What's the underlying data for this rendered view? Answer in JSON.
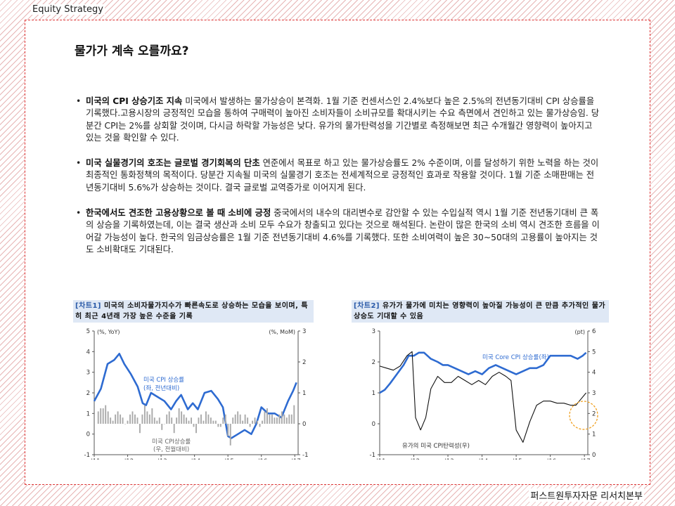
{
  "header": {
    "label": "Equity Strategy"
  },
  "title": "물가가 계속 오를까요?",
  "bullets": [
    {
      "bold": "미국의 CPI 상승기조 지속",
      "text": " 미국에서 발생하는 물가상승이 본격화. 1월 기준 컨센서스인 2.4%보다 높은 2.5%의 전년동기대비 CPI 상승률을 기록했다.고용시장의 긍정적인 모습을 통하여 구매력이 높아진 소비자들이 소비규모를 확대시키는 수요 측면에서 견인하고 있는 물가상승임. 당분간 CPI는 2%를 상회할 것이며, 다시금 하락할 가능성은 낮다. 유가의 물가탄력성을 기간별로 측정해보면 최근 수개월간 영향력이 높아지고 있는 것을 확인할 수 있다."
    },
    {
      "bold": "미국 실물경기의 호조는 글로벌 경기회복의 단초",
      "text": " 연준에서 목표로 하고 있는 물가상승률도 2% 수준이며, 이를 달성하기 위한 노력을 하는 것이 최종적인 통화정책의 목적이다. 당분간 지속될 미국의 실물경기 호조는 전세계적으로 긍정적인 효과로 작용할 것이다. 1월 기준 소매판매는 전년동기대비 5.6%가 상승하는 것이다. 결국 글로벌 교역증가로 이어지게 된다."
    },
    {
      "bold": "한국에서도 견조한 고용상황으로 볼 때 소비에 긍정",
      "text": " 중국에서의 내수의 대리변수로 감안할 수 있는 수입실적 역시 1월 기준 전년동기대비 큰 폭의 상승을 기록하였는데, 이는 결국 생산과 소비 모두 수요가 창출되고 있다는 것으로 해석된다. 논란이 많은 한국의 소비 역시 견조한 흐름을 이어갈 가능성이 높다. 한국의 임금상승률은 1월 기준 전년동기대비 4.6%를 기록했다. 또한 소비여력이 높은 30~50대의 고용률이 높아지는 것도 소비확대도 기대된다."
    }
  ],
  "chart_data": [
    {
      "type": "line",
      "tag": "[차트1]",
      "title": "미국의 소비자물가지수가 빠른속도로 상승하는 모습을 보이며, 특히 최근 4년래 가장 높은 수준을 기록",
      "left_axis_unit": "(%, YoY)",
      "right_axis_unit": "(%, MoM)",
      "x_ticks": [
        "'11",
        "'12",
        "'13",
        "'14",
        "'15",
        "'16",
        "'17"
      ],
      "left_ticks": [
        "5",
        "4",
        "3",
        "2",
        "1",
        "0",
        "-1"
      ],
      "right_ticks": [
        "3",
        "2",
        "1",
        "0",
        "-1"
      ],
      "ylim_left": [
        -1,
        5
      ],
      "ylim_right": [
        -1,
        3
      ],
      "xlim": [
        2011,
        2017.1
      ],
      "series": [
        {
          "name": "미국 CPI 상승률 (좌, 전년대비)",
          "type": "line",
          "axis": "left",
          "color": "#2e6bd1",
          "x": [
            2011.0,
            2011.2,
            2011.4,
            2011.6,
            2011.75,
            2011.9,
            2012.1,
            2012.3,
            2012.45,
            2012.55,
            2012.7,
            2012.9,
            2013.1,
            2013.3,
            2013.45,
            2013.6,
            2013.8,
            2013.95,
            2014.1,
            2014.3,
            2014.5,
            2014.7,
            2014.85,
            2015.0,
            2015.1,
            2015.3,
            2015.5,
            2015.7,
            2015.85,
            2016.0,
            2016.2,
            2016.4,
            2016.6,
            2016.8,
            2016.95,
            2017.05
          ],
          "y": [
            1.6,
            2.2,
            3.4,
            3.6,
            3.9,
            3.4,
            2.9,
            2.3,
            1.5,
            1.4,
            2.0,
            1.8,
            1.6,
            1.2,
            1.6,
            1.9,
            1.2,
            1.5,
            1.2,
            2.0,
            2.1,
            1.7,
            1.3,
            -0.1,
            -0.2,
            0.0,
            0.2,
            0.0,
            0.5,
            1.3,
            1.0,
            1.0,
            0.8,
            1.6,
            2.1,
            2.5
          ]
        },
        {
          "name": "미국 CPI상승률 (우, 전월대비)",
          "type": "bar",
          "axis": "right",
          "color": "#aaaaaa",
          "values": [
            0.4,
            0.5,
            0.5,
            0.6,
            0.4,
            0.2,
            0.1,
            0.3,
            0.4,
            0.3,
            0.2,
            0.0,
            0.1,
            0.3,
            0.4,
            0.3,
            0.2,
            -0.3,
            0.3,
            0.6,
            0.4,
            0.3,
            0.5,
            0.2,
            0.1,
            0.2,
            -0.2,
            0.0,
            0.3,
            0.4,
            0.2,
            -0.3,
            0.2,
            0.5,
            0.4,
            0.3,
            0.2,
            0.1,
            0.2,
            -0.1,
            -0.3,
            0.2,
            0.3,
            0.1,
            0.4,
            0.3,
            0.2,
            0.1,
            0.1,
            -0.1,
            -0.1,
            0.2,
            0.3,
            -0.4,
            -0.7,
            0.2,
            0.3,
            0.4,
            0.3,
            0.1,
            0.3,
            0.2,
            -0.1,
            0.1,
            0.2,
            0.1,
            -0.1,
            0.1,
            0.4,
            0.5,
            0.3,
            0.3,
            0.2,
            0.2,
            0.3,
            0.4,
            0.3,
            0.2,
            0.3,
            0.3,
            0.6
          ]
        }
      ]
    },
    {
      "type": "line",
      "tag": "[차트2]",
      "title": "유가가 물가에 미치는 영향력이 높아질 가능성이 큰 만큼 추가적인 물가상승도 기대할 수 있음",
      "left_axis_unit": "",
      "right_axis_unit": "(pt)",
      "x_ticks": [
        "'11",
        "'12",
        "'13",
        "'14",
        "'15",
        "'16",
        "'17"
      ],
      "left_ticks": [
        "3",
        "2",
        "1",
        "0",
        "-1"
      ],
      "right_ticks": [
        "6",
        "5",
        "4",
        "3",
        "2",
        "1",
        "0"
      ],
      "ylim_left": [
        -1,
        3
      ],
      "ylim_right": [
        0,
        6
      ],
      "xlim": [
        2011,
        2017.1
      ],
      "series": [
        {
          "name": "미국 Core CPI 상승률(좌)",
          "type": "line",
          "axis": "left",
          "color": "#2e6bd1",
          "x": [
            2011.0,
            2011.15,
            2011.3,
            2011.5,
            2011.7,
            2011.85,
            2012.0,
            2012.15,
            2012.3,
            2012.5,
            2012.7,
            2012.85,
            2013.0,
            2013.2,
            2013.4,
            2013.6,
            2013.8,
            2014.0,
            2014.2,
            2014.4,
            2014.6,
            2014.8,
            2015.0,
            2015.2,
            2015.4,
            2015.6,
            2015.8,
            2016.0,
            2016.2,
            2016.4,
            2016.6,
            2016.8,
            2016.95,
            2017.05
          ],
          "y": [
            1.0,
            1.1,
            1.3,
            1.6,
            1.9,
            2.2,
            2.2,
            2.3,
            2.3,
            2.1,
            2.0,
            1.9,
            1.9,
            1.8,
            1.7,
            1.6,
            1.7,
            1.6,
            1.8,
            1.9,
            1.8,
            1.7,
            1.6,
            1.7,
            1.8,
            1.8,
            1.9,
            2.2,
            2.2,
            2.2,
            2.2,
            2.1,
            2.2,
            2.3
          ]
        },
        {
          "name": "유가의 미국 CPI탄력성(우)",
          "type": "line",
          "axis": "right",
          "color": "#111111",
          "x": [
            2011.0,
            2011.2,
            2011.4,
            2011.6,
            2011.8,
            2011.95,
            2012.05,
            2012.2,
            2012.35,
            2012.5,
            2012.7,
            2012.9,
            2013.1,
            2013.3,
            2013.5,
            2013.7,
            2013.9,
            2014.1,
            2014.3,
            2014.5,
            2014.7,
            2014.85,
            2015.0,
            2015.2,
            2015.4,
            2015.6,
            2015.8,
            2016.0,
            2016.2,
            2016.4,
            2016.6,
            2016.75,
            2016.9,
            2017.05
          ],
          "y": [
            4.3,
            4.2,
            4.1,
            4.3,
            4.8,
            5.0,
            1.8,
            1.2,
            1.8,
            3.2,
            3.8,
            3.5,
            3.5,
            3.8,
            3.6,
            3.4,
            3.6,
            3.4,
            3.8,
            4.0,
            3.8,
            3.6,
            1.2,
            0.6,
            1.6,
            2.4,
            2.6,
            2.6,
            2.5,
            2.5,
            2.4,
            2.4,
            2.7,
            3.0
          ]
        }
      ]
    }
  ],
  "footer": {
    "label": "퍼스트원투자자문 리서치본부"
  }
}
